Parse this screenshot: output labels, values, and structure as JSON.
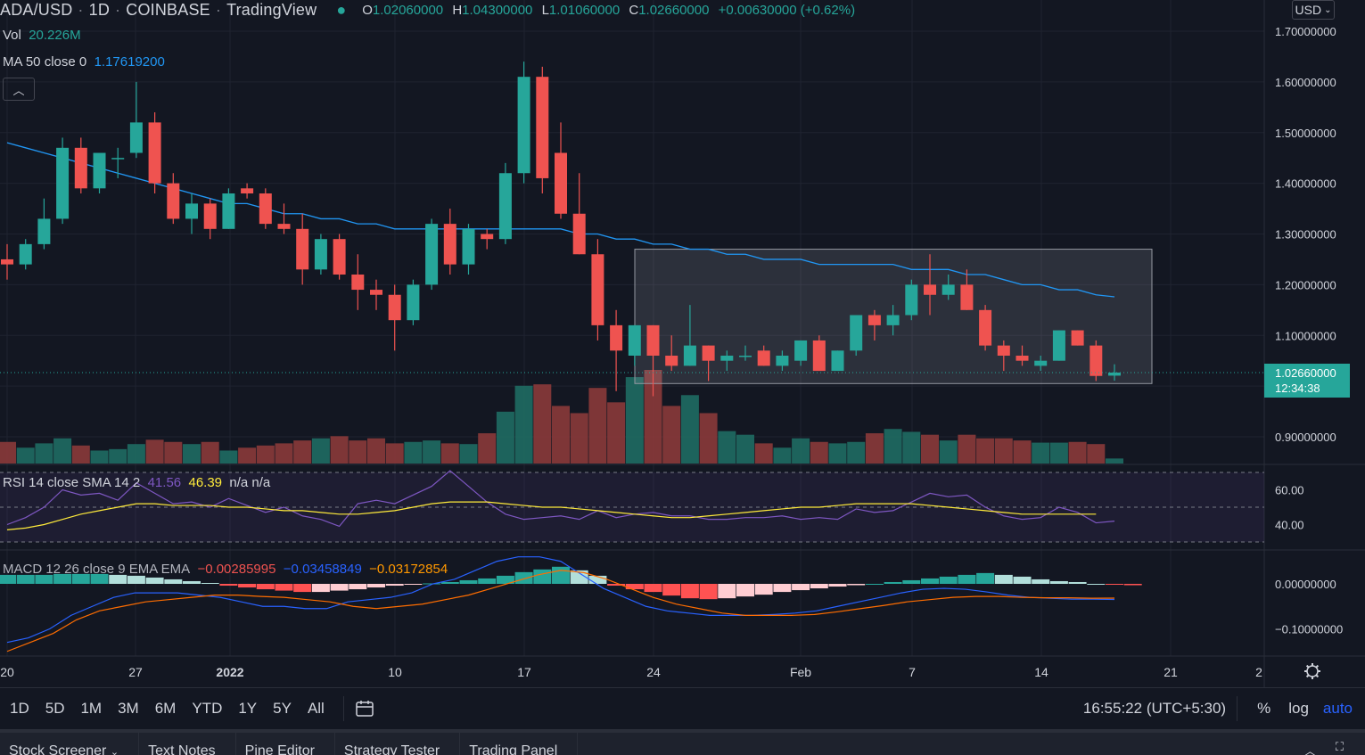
{
  "header": {
    "symbol": "ADA/USD",
    "interval": "1D",
    "exchange": "COINBASE",
    "platform": "TradingView",
    "open_label": "O",
    "open": "1.02060000",
    "high_label": "H",
    "high": "1.04300000",
    "low_label": "L",
    "low": "1.01060000",
    "close_label": "C",
    "close": "1.02660000",
    "change": "+0.00630000 (+0.62%)"
  },
  "currency_button": "USD",
  "volume": {
    "label": "Vol",
    "value": "20.226M"
  },
  "ma": {
    "label": "MA 50 close 0",
    "value": "1.17619200"
  },
  "rsi": {
    "label": "RSI 14 close SMA 14 2",
    "v1": "41.56",
    "v2": "46.39",
    "v3": "n/a n/a"
  },
  "macd": {
    "label": "MACD 12 26 close 9 EMA EMA",
    "v1": "−0.00285995",
    "v2": "−0.03458849",
    "v3": "−0.03172854"
  },
  "current_price": {
    "price": "1.02660000",
    "countdown": "12:34:38"
  },
  "price_axis": [
    "1.70000000",
    "1.60000000",
    "1.50000000",
    "1.40000000",
    "1.30000000",
    "1.20000000",
    "1.10000000",
    "0.90000000"
  ],
  "rsi_axis": [
    "60.00",
    "40.00"
  ],
  "macd_axis": [
    "0.00000000",
    "−0.10000000"
  ],
  "time_axis": [
    "20",
    "27",
    "2022",
    "10",
    "17",
    "24",
    "Feb",
    "7",
    "14",
    "21",
    "2"
  ],
  "ranges": [
    "1D",
    "5D",
    "1M",
    "3M",
    "6M",
    "YTD",
    "1Y",
    "5Y",
    "All"
  ],
  "clock": "16:55:22 (UTC+5:30)",
  "scale_options": {
    "percent": "%",
    "log": "log",
    "auto": "auto"
  },
  "tabs": [
    "Stock Screener",
    "Text Notes",
    "Pine Editor",
    "Strategy Tester",
    "Trading Panel"
  ],
  "colors": {
    "up": "#26a69a",
    "down": "#ef5350",
    "ma": "#2962ff",
    "rsi": "#7e57c2",
    "rsi_sma": "#ffeb3b",
    "macd": "#2962ff",
    "signal": "#ff6d00"
  },
  "chart_data": {
    "type": "candlestick",
    "ylim": [
      0.85,
      1.72
    ],
    "candles": [
      {
        "o": 1.25,
        "h": 1.28,
        "l": 1.21,
        "c": 1.24
      },
      {
        "o": 1.24,
        "h": 1.29,
        "l": 1.23,
        "c": 1.28
      },
      {
        "o": 1.28,
        "h": 1.37,
        "l": 1.27,
        "c": 1.33
      },
      {
        "o": 1.33,
        "h": 1.49,
        "l": 1.32,
        "c": 1.47
      },
      {
        "o": 1.47,
        "h": 1.49,
        "l": 1.38,
        "c": 1.39
      },
      {
        "o": 1.39,
        "h": 1.46,
        "l": 1.38,
        "c": 1.46
      },
      {
        "o": 1.45,
        "h": 1.47,
        "l": 1.41,
        "c": 1.45
      },
      {
        "o": 1.46,
        "h": 1.6,
        "l": 1.45,
        "c": 1.52
      },
      {
        "o": 1.52,
        "h": 1.54,
        "l": 1.38,
        "c": 1.4
      },
      {
        "o": 1.4,
        "h": 1.42,
        "l": 1.32,
        "c": 1.33
      },
      {
        "o": 1.33,
        "h": 1.38,
        "l": 1.3,
        "c": 1.36
      },
      {
        "o": 1.36,
        "h": 1.37,
        "l": 1.29,
        "c": 1.31
      },
      {
        "o": 1.31,
        "h": 1.39,
        "l": 1.31,
        "c": 1.38
      },
      {
        "o": 1.39,
        "h": 1.4,
        "l": 1.37,
        "c": 1.38
      },
      {
        "o": 1.38,
        "h": 1.39,
        "l": 1.31,
        "c": 1.32
      },
      {
        "o": 1.32,
        "h": 1.36,
        "l": 1.3,
        "c": 1.31
      },
      {
        "o": 1.31,
        "h": 1.34,
        "l": 1.2,
        "c": 1.23
      },
      {
        "o": 1.23,
        "h": 1.3,
        "l": 1.22,
        "c": 1.29
      },
      {
        "o": 1.29,
        "h": 1.3,
        "l": 1.21,
        "c": 1.22
      },
      {
        "o": 1.22,
        "h": 1.26,
        "l": 1.15,
        "c": 1.19
      },
      {
        "o": 1.19,
        "h": 1.21,
        "l": 1.15,
        "c": 1.18
      },
      {
        "o": 1.18,
        "h": 1.2,
        "l": 1.07,
        "c": 1.13
      },
      {
        "o": 1.13,
        "h": 1.21,
        "l": 1.12,
        "c": 1.2
      },
      {
        "o": 1.2,
        "h": 1.33,
        "l": 1.19,
        "c": 1.32
      },
      {
        "o": 1.32,
        "h": 1.35,
        "l": 1.22,
        "c": 1.24
      },
      {
        "o": 1.24,
        "h": 1.32,
        "l": 1.22,
        "c": 1.31
      },
      {
        "o": 1.3,
        "h": 1.31,
        "l": 1.27,
        "c": 1.29
      },
      {
        "o": 1.29,
        "h": 1.44,
        "l": 1.28,
        "c": 1.42
      },
      {
        "o": 1.42,
        "h": 1.64,
        "l": 1.4,
        "c": 1.61
      },
      {
        "o": 1.61,
        "h": 1.63,
        "l": 1.38,
        "c": 1.41
      },
      {
        "o": 1.46,
        "h": 1.52,
        "l": 1.33,
        "c": 1.34
      },
      {
        "o": 1.34,
        "h": 1.42,
        "l": 1.26,
        "c": 1.26
      },
      {
        "o": 1.26,
        "h": 1.29,
        "l": 1.09,
        "c": 1.12
      },
      {
        "o": 1.12,
        "h": 1.15,
        "l": 0.99,
        "c": 1.07
      },
      {
        "o": 1.06,
        "h": 1.12,
        "l": 1.04,
        "c": 1.12
      },
      {
        "o": 1.12,
        "h": 1.12,
        "l": 0.98,
        "c": 1.06
      },
      {
        "o": 1.06,
        "h": 1.1,
        "l": 1.03,
        "c": 1.04
      },
      {
        "o": 1.04,
        "h": 1.16,
        "l": 1.04,
        "c": 1.08
      },
      {
        "o": 1.08,
        "h": 1.08,
        "l": 1.01,
        "c": 1.05
      },
      {
        "o": 1.05,
        "h": 1.07,
        "l": 1.03,
        "c": 1.06
      },
      {
        "o": 1.06,
        "h": 1.08,
        "l": 1.05,
        "c": 1.06
      },
      {
        "o": 1.07,
        "h": 1.08,
        "l": 1.04,
        "c": 1.04
      },
      {
        "o": 1.04,
        "h": 1.07,
        "l": 1.03,
        "c": 1.06
      },
      {
        "o": 1.05,
        "h": 1.09,
        "l": 1.04,
        "c": 1.09
      },
      {
        "o": 1.09,
        "h": 1.1,
        "l": 1.03,
        "c": 1.03
      },
      {
        "o": 1.03,
        "h": 1.07,
        "l": 1.03,
        "c": 1.07
      },
      {
        "o": 1.07,
        "h": 1.14,
        "l": 1.06,
        "c": 1.14
      },
      {
        "o": 1.14,
        "h": 1.15,
        "l": 1.09,
        "c": 1.12
      },
      {
        "o": 1.12,
        "h": 1.16,
        "l": 1.1,
        "c": 1.14
      },
      {
        "o": 1.14,
        "h": 1.21,
        "l": 1.13,
        "c": 1.2
      },
      {
        "o": 1.2,
        "h": 1.26,
        "l": 1.14,
        "c": 1.18
      },
      {
        "o": 1.18,
        "h": 1.22,
        "l": 1.17,
        "c": 1.2
      },
      {
        "o": 1.2,
        "h": 1.23,
        "l": 1.15,
        "c": 1.15
      },
      {
        "o": 1.15,
        "h": 1.16,
        "l": 1.07,
        "c": 1.08
      },
      {
        "o": 1.08,
        "h": 1.09,
        "l": 1.03,
        "c": 1.06
      },
      {
        "o": 1.06,
        "h": 1.08,
        "l": 1.04,
        "c": 1.05
      },
      {
        "o": 1.04,
        "h": 1.06,
        "l": 1.03,
        "c": 1.05
      },
      {
        "o": 1.05,
        "h": 1.11,
        "l": 1.05,
        "c": 1.11
      },
      {
        "o": 1.11,
        "h": 1.11,
        "l": 1.08,
        "c": 1.08
      },
      {
        "o": 1.08,
        "h": 1.09,
        "l": 1.01,
        "c": 1.02
      },
      {
        "o": 1.0206,
        "h": 1.043,
        "l": 1.0106,
        "c": 1.0266
      }
    ],
    "volume": [
      30,
      22,
      28,
      35,
      25,
      18,
      20,
      27,
      33,
      30,
      27,
      30,
      18,
      22,
      25,
      28,
      32,
      35,
      38,
      32,
      35,
      28,
      30,
      32,
      28,
      27,
      42,
      72,
      108,
      110,
      80,
      70,
      105,
      85,
      120,
      130,
      80,
      95,
      70,
      45,
      40,
      28,
      22,
      35,
      30,
      28,
      30,
      42,
      48,
      44,
      40,
      32,
      40,
      35,
      35,
      32,
      29,
      29,
      30,
      27,
      7
    ],
    "ma50": [
      1.48,
      1.47,
      1.46,
      1.45,
      1.44,
      1.43,
      1.42,
      1.41,
      1.4,
      1.39,
      1.38,
      1.37,
      1.36,
      1.36,
      1.35,
      1.34,
      1.34,
      1.33,
      1.33,
      1.32,
      1.32,
      1.31,
      1.31,
      1.31,
      1.31,
      1.31,
      1.31,
      1.31,
      1.31,
      1.31,
      1.31,
      1.3,
      1.3,
      1.29,
      1.29,
      1.28,
      1.28,
      1.27,
      1.27,
      1.26,
      1.26,
      1.25,
      1.25,
      1.25,
      1.24,
      1.24,
      1.24,
      1.24,
      1.24,
      1.23,
      1.23,
      1.23,
      1.22,
      1.22,
      1.21,
      1.2,
      1.2,
      1.19,
      1.19,
      1.18,
      1.176
    ],
    "rsi": [
      40,
      44,
      50,
      60,
      57,
      58,
      54,
      64,
      58,
      52,
      53,
      50,
      55,
      51,
      47,
      50,
      45,
      43,
      39,
      52,
      54,
      52,
      57,
      62,
      71,
      62,
      53,
      46,
      43,
      44,
      45,
      43,
      48,
      44,
      46,
      47,
      45,
      45,
      43,
      43,
      44,
      44,
      45,
      43,
      44,
      43,
      49,
      47,
      48,
      53,
      58,
      56,
      57,
      50,
      45,
      43,
      44,
      50,
      47,
      41,
      42
    ],
    "rsi_sma": [
      37,
      38,
      40,
      43,
      46,
      48,
      50,
      52,
      52,
      51,
      51,
      51,
      50,
      50,
      49,
      48,
      48,
      47,
      46,
      46,
      47,
      48,
      50,
      52,
      53,
      53,
      53,
      52,
      51,
      50,
      50,
      49,
      48,
      47,
      46,
      45,
      44,
      44,
      45,
      46,
      47,
      48,
      49,
      50,
      50,
      51,
      52,
      52,
      52,
      52,
      51,
      50,
      49,
      48,
      47,
      46,
      46,
      46,
      46,
      46
    ],
    "macd": [
      -0.13,
      -0.12,
      -0.1,
      -0.07,
      -0.05,
      -0.03,
      -0.02,
      -0.02,
      -0.02,
      -0.025,
      -0.03,
      -0.04,
      -0.05,
      -0.05,
      -0.055,
      -0.055,
      -0.04,
      -0.035,
      -0.03,
      -0.02,
      0.0,
      0.01,
      0.03,
      0.05,
      0.06,
      0.06,
      0.05,
      0.02,
      -0.01,
      -0.03,
      -0.05,
      -0.06,
      -0.065,
      -0.07,
      -0.07,
      -0.07,
      -0.068,
      -0.065,
      -0.06,
      -0.05,
      -0.04,
      -0.03,
      -0.02,
      -0.012,
      -0.01,
      -0.012,
      -0.018,
      -0.025,
      -0.03,
      -0.032,
      -0.034,
      -0.034,
      -0.0346
    ],
    "signal": [
      -0.15,
      -0.13,
      -0.11,
      -0.08,
      -0.06,
      -0.05,
      -0.04,
      -0.035,
      -0.03,
      -0.025,
      -0.025,
      -0.028,
      -0.03,
      -0.035,
      -0.04,
      -0.05,
      -0.055,
      -0.05,
      -0.045,
      -0.035,
      -0.025,
      -0.01,
      0.005,
      0.02,
      0.03,
      0.025,
      0.01,
      -0.01,
      -0.03,
      -0.045,
      -0.055,
      -0.065,
      -0.07,
      -0.07,
      -0.07,
      -0.068,
      -0.062,
      -0.055,
      -0.048,
      -0.04,
      -0.035,
      -0.03,
      -0.028,
      -0.028,
      -0.03,
      -0.031,
      -0.031,
      -0.032,
      -0.0317
    ],
    "histogram": [
      0.02,
      0.02,
      0.02,
      0.022,
      0.022,
      0.022,
      0.02,
      0.018,
      0.014,
      0.01,
      0.006,
      0.002,
      -0.004,
      -0.008,
      -0.012,
      -0.015,
      -0.018,
      -0.018,
      -0.015,
      -0.012,
      -0.008,
      -0.004,
      -0.002,
      0.001,
      0.004,
      0.008,
      0.012,
      0.018,
      0.026,
      0.032,
      0.038,
      0.03,
      0.018,
      -0.004,
      -0.012,
      -0.018,
      -0.026,
      -0.032,
      -0.034,
      -0.032,
      -0.028,
      -0.024,
      -0.018,
      -0.014,
      -0.01,
      -0.006,
      -0.003,
      0.0,
      0.004,
      0.008,
      0.012,
      0.016,
      0.02,
      0.024,
      0.02,
      0.016,
      0.01,
      0.006,
      0.004,
      0.0,
      -0.002,
      -0.003
    ]
  }
}
